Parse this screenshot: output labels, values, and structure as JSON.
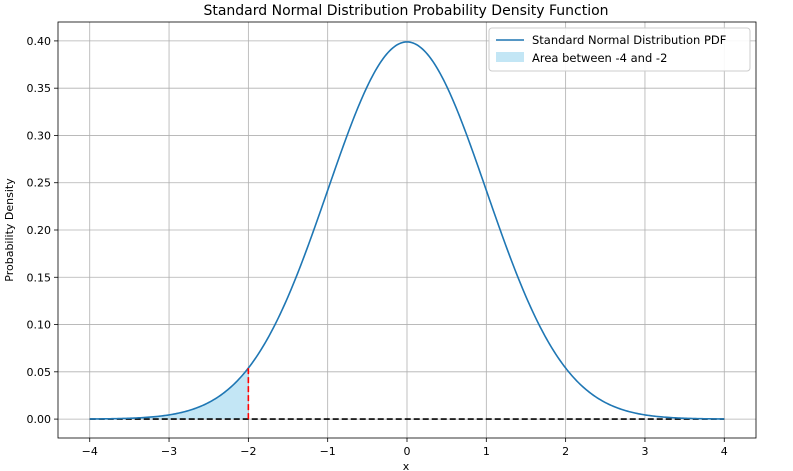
{
  "chart_data": {
    "type": "line",
    "title": "Standard Normal Distribution Probability Density Function",
    "xlabel": "x",
    "ylabel": "Probability Density",
    "xlim": [
      -4.4,
      4.4
    ],
    "ylim": [
      -0.02,
      0.42
    ],
    "grid": true,
    "x_ticks": [
      -4,
      -3,
      -2,
      -1,
      0,
      1,
      2,
      3,
      4
    ],
    "x_tick_labels": [
      "−4",
      "−3",
      "−2",
      "−1",
      "0",
      "1",
      "2",
      "3",
      "4"
    ],
    "y_ticks": [
      0.0,
      0.05,
      0.1,
      0.15,
      0.2,
      0.25,
      0.3,
      0.35,
      0.4
    ],
    "y_tick_labels": [
      "0.00",
      "0.05",
      "0.10",
      "0.15",
      "0.20",
      "0.25",
      "0.30",
      "0.35",
      "0.40"
    ],
    "series": [
      {
        "name": "Standard Normal Distribution PDF",
        "color": "#1f77b4",
        "x": [
          -4.0,
          -3.5,
          -3.0,
          -2.5,
          -2.0,
          -1.75,
          -1.5,
          -1.25,
          -1.0,
          -0.75,
          -0.5,
          -0.25,
          0.0,
          0.25,
          0.5,
          0.75,
          1.0,
          1.25,
          1.5,
          1.75,
          2.0,
          2.5,
          3.0,
          3.5,
          4.0
        ],
        "y": [
          0.0001,
          0.0009,
          0.0044,
          0.0175,
          0.054,
          0.0863,
          0.1295,
          0.1826,
          0.242,
          0.3011,
          0.3521,
          0.3867,
          0.3989,
          0.3867,
          0.3521,
          0.3011,
          0.242,
          0.1826,
          0.1295,
          0.0863,
          0.054,
          0.0175,
          0.0044,
          0.0009,
          0.0001
        ]
      }
    ],
    "filled_area": {
      "name": "Area between -4 and -2",
      "color": "#87ceeb",
      "x_from": -4,
      "x_to": -2
    },
    "vertical_line": {
      "x": -2,
      "y_top": 0.054,
      "color": "#ff0000",
      "style": "dashed"
    },
    "baseline": {
      "y": 0,
      "x_from": -4,
      "x_to": 4,
      "color": "#000000",
      "style": "dashed"
    },
    "legend_position": "top-right"
  }
}
